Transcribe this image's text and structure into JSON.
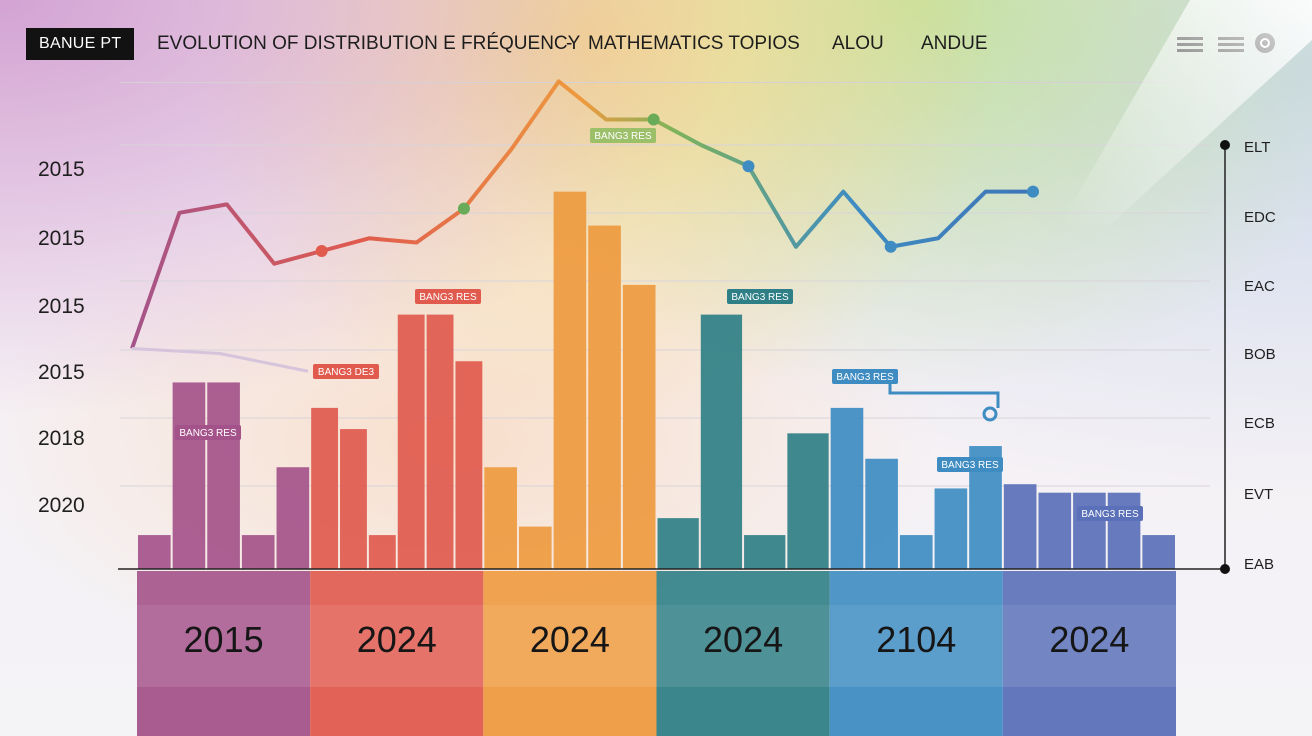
{
  "header": {
    "badge": "BANUE PT",
    "title": "EVOLUTION OF DISTRIBUTION E FRÉQUENCY",
    "separator": "-",
    "subtitle": "MATHEMATICS TOPIOS",
    "nav_item_1": "ALOU",
    "nav_item_2": "ANDUE",
    "icons": [
      "menu-icon",
      "menu-icon",
      "record-icon"
    ]
  },
  "chart_data": {
    "type": "bar",
    "title": "EVOLUTION OF DISTRIBUTION E FRÉQUENCY",
    "left_axis_labels": [
      "2015",
      "2015",
      "2015",
      "2015",
      "2018",
      "2020"
    ],
    "right_axis_labels": [
      "ELT",
      "EDC",
      "EAC",
      "BOB",
      "ECB",
      "EVT",
      "EAB"
    ],
    "ylim": [
      0,
      100
    ],
    "grid": true,
    "groups": [
      {
        "label": "2015",
        "color": "#a4538a",
        "values": [
          8,
          44,
          44,
          8,
          24
        ]
      },
      {
        "label": "2024",
        "color": "#e05a4e",
        "values": [
          38,
          33,
          8,
          60,
          60,
          49
        ]
      },
      {
        "label": "2024",
        "color": "#ee9a3f",
        "values": [
          24,
          10,
          89,
          81,
          67
        ]
      },
      {
        "label": "2024",
        "color": "#2f7f86",
        "values": [
          12,
          60,
          8,
          32
        ]
      },
      {
        "label": "2104",
        "color": "#3e8cc2",
        "values": [
          38,
          26,
          8,
          19,
          29
        ]
      },
      {
        "label": "2024",
        "color": "#5a70b8",
        "values": [
          20,
          18,
          18,
          18,
          8
        ]
      }
    ],
    "trend_line": {
      "values": [
        52,
        84,
        86,
        72,
        75,
        78,
        77,
        85,
        99,
        115,
        106,
        106,
        100,
        95,
        76,
        89,
        76,
        78,
        89,
        89
      ]
    },
    "secondary_line": {
      "values": [
        52,
        52,
        49
      ]
    },
    "annotations": [
      {
        "text": "BANG3 RES",
        "group": 0
      },
      {
        "text": "BANG3 DE3",
        "group": 1
      },
      {
        "text": "BANG3 RES",
        "group": 1
      },
      {
        "text": "BANG3 RES",
        "group": 2
      },
      {
        "text": "BANG3 RES",
        "group": 3
      },
      {
        "text": "BANG3 RES",
        "group": 4
      },
      {
        "text": "BANG3 RES",
        "group": 4
      },
      {
        "text": "BANG3 RES",
        "group": 5
      }
    ]
  }
}
